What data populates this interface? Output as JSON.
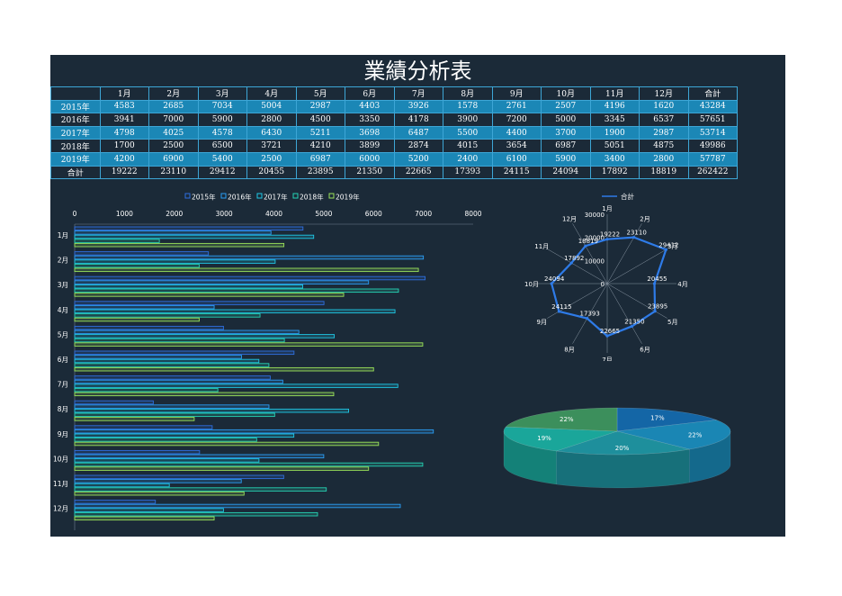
{
  "title": "業績分析表",
  "table": {
    "headers": [
      "",
      "1月",
      "2月",
      "3月",
      "4月",
      "5月",
      "6月",
      "7月",
      "8月",
      "9月",
      "10月",
      "11月",
      "12月",
      "合計"
    ],
    "rows": [
      {
        "label": "2015年",
        "values": [
          "4583",
          "2685",
          "7034",
          "5004",
          "2987",
          "4403",
          "3926",
          "1578",
          "2761",
          "2507",
          "4196",
          "1620",
          "43284"
        ]
      },
      {
        "label": "2016年",
        "values": [
          "3941",
          "7000",
          "5900",
          "2800",
          "4500",
          "3350",
          "4178",
          "3900",
          "7200",
          "5000",
          "3345",
          "6537",
          "57651"
        ]
      },
      {
        "label": "2017年",
        "values": [
          "4798",
          "4025",
          "4578",
          "6430",
          "5211",
          "3698",
          "6487",
          "5500",
          "4400",
          "3700",
          "1900",
          "2987",
          "53714"
        ]
      },
      {
        "label": "2018年",
        "values": [
          "1700",
          "2500",
          "6500",
          "3721",
          "4210",
          "3899",
          "2874",
          "4015",
          "3654",
          "6987",
          "5051",
          "4875",
          "49986"
        ]
      },
      {
        "label": "2019年",
        "values": [
          "4200",
          "6900",
          "5400",
          "2500",
          "6987",
          "6000",
          "5200",
          "2400",
          "6100",
          "5900",
          "3400",
          "2800",
          "57787"
        ]
      },
      {
        "label": "合計",
        "values": [
          "19222",
          "23110",
          "29412",
          "20455",
          "23895",
          "21350",
          "22665",
          "17393",
          "24115",
          "24094",
          "17892",
          "18819",
          "262422"
        ]
      }
    ]
  },
  "chart_data": [
    {
      "type": "bar",
      "orientation": "horizontal",
      "categories": [
        "1月",
        "2月",
        "3月",
        "4月",
        "5月",
        "6月",
        "7月",
        "8月",
        "9月",
        "10月",
        "11月",
        "12月"
      ],
      "series": [
        {
          "name": "2015年",
          "color": "#2e6fe0",
          "values": [
            4583,
            2685,
            7034,
            5004,
            2987,
            4403,
            3926,
            1578,
            2761,
            2507,
            4196,
            1620
          ]
        },
        {
          "name": "2016年",
          "color": "#2a9df4",
          "values": [
            3941,
            7000,
            5900,
            2800,
            4500,
            3350,
            4178,
            3900,
            7200,
            5000,
            3345,
            6537
          ]
        },
        {
          "name": "2017年",
          "color": "#1ec8e6",
          "values": [
            4798,
            4025,
            4578,
            6430,
            5211,
            3698,
            6487,
            5500,
            4400,
            3700,
            1900,
            2987
          ]
        },
        {
          "name": "2018年",
          "color": "#25d3b4",
          "values": [
            1700,
            2500,
            6500,
            3721,
            4210,
            3899,
            2874,
            4015,
            3654,
            6987,
            5051,
            4875
          ]
        },
        {
          "name": "2019年",
          "color": "#9be35a",
          "values": [
            4200,
            6900,
            5400,
            2500,
            6987,
            6000,
            5200,
            2400,
            6100,
            5900,
            3400,
            2800
          ]
        }
      ],
      "xlim": [
        0,
        8000
      ],
      "xticks": [
        "0",
        "1000",
        "2000",
        "3000",
        "4000",
        "5000",
        "6000",
        "7000",
        "8000"
      ],
      "legend": "top"
    },
    {
      "type": "radar",
      "categories": [
        "1月",
        "2月",
        "3月",
        "4月",
        "5月",
        "6月",
        "7月",
        "8月",
        "9月",
        "10月",
        "11月",
        "12月"
      ],
      "series": [
        {
          "name": "合計",
          "color": "#2e7be8",
          "values": [
            19222,
            23110,
            29412,
            20455,
            23895,
            21350,
            22665,
            17393,
            24115,
            24094,
            17892,
            18819
          ]
        }
      ],
      "rticks": [
        "0",
        "10000",
        "20000",
        "30000"
      ],
      "rmax": 30000,
      "legend": "top"
    },
    {
      "type": "pie",
      "style": "3d",
      "slices": [
        {
          "label": "17%",
          "value": 17,
          "color": "#1466a6"
        },
        {
          "label": "22%",
          "value": 22,
          "color": "#1a86b4"
        },
        {
          "label": "20%",
          "value": 20,
          "color": "#1e8f9c"
        },
        {
          "label": "19%",
          "value": 19,
          "color": "#1aa69a"
        },
        {
          "label": "22%",
          "value": 22,
          "color": "#3c8f5c"
        }
      ]
    }
  ]
}
